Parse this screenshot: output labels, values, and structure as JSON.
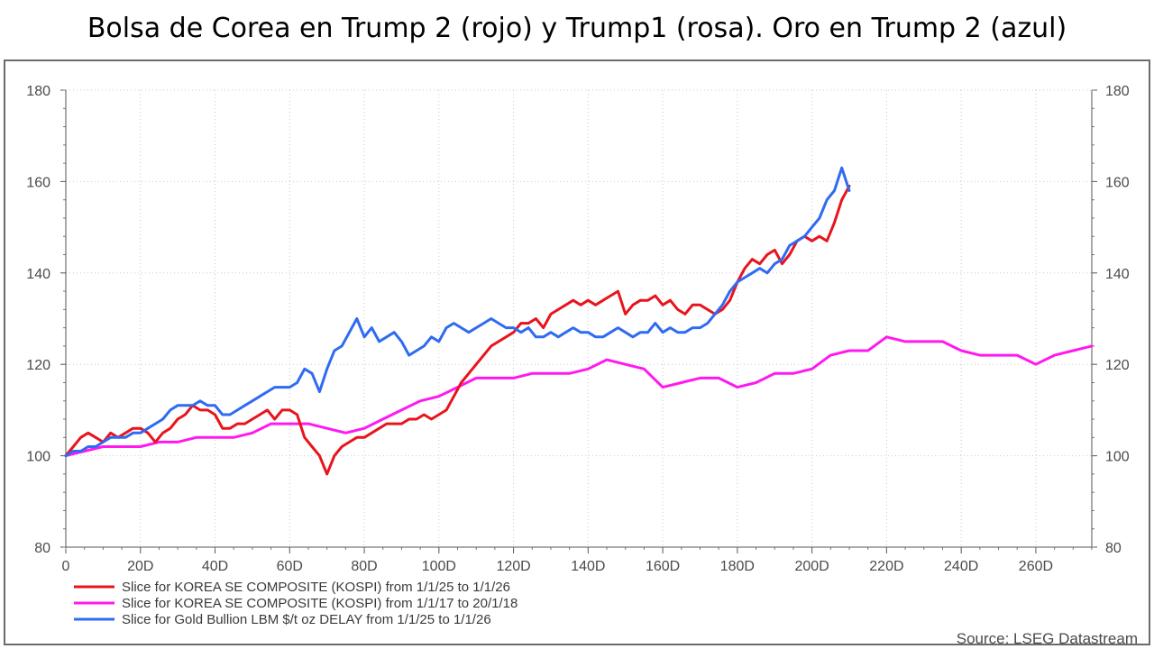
{
  "title": "Bolsa de Corea en Trump 2 (rojo) y Trump1 (rosa). Oro en Trump 2 (azul)",
  "source": "Source: LSEG Datastream",
  "chart_data": {
    "type": "line",
    "title": "Bolsa de Corea en Trump 2 (rojo) y Trump1 (rosa). Oro en Trump 2 (azul)",
    "xlabel": "",
    "ylabel": "",
    "xlim": [
      0,
      275
    ],
    "ylim": [
      80,
      180
    ],
    "grid": true,
    "legend": "bottom-left",
    "x_ticks": [
      {
        "value": 0,
        "label": "0"
      },
      {
        "value": 20,
        "label": "20D"
      },
      {
        "value": 40,
        "label": "40D"
      },
      {
        "value": 60,
        "label": "60D"
      },
      {
        "value": 80,
        "label": "80D"
      },
      {
        "value": 100,
        "label": "100D"
      },
      {
        "value": 120,
        "label": "120D"
      },
      {
        "value": 140,
        "label": "140D"
      },
      {
        "value": 160,
        "label": "160D"
      },
      {
        "value": 180,
        "label": "180D"
      },
      {
        "value": 200,
        "label": "200D"
      },
      {
        "value": 220,
        "label": "220D"
      },
      {
        "value": 240,
        "label": "240D"
      },
      {
        "value": 260,
        "label": "260D"
      }
    ],
    "y_ticks": [
      80,
      100,
      120,
      140,
      160,
      180
    ],
    "series": [
      {
        "name": "Slice for KOREA SE COMPOSITE (KOSPI) from 1/1/25 to 1/1/26",
        "color": "#e8141c",
        "x": [
          0,
          2,
          4,
          6,
          8,
          10,
          12,
          14,
          16,
          18,
          20,
          22,
          24,
          26,
          28,
          30,
          32,
          34,
          36,
          38,
          40,
          42,
          44,
          46,
          48,
          50,
          52,
          54,
          56,
          58,
          60,
          62,
          64,
          66,
          68,
          70,
          72,
          74,
          76,
          78,
          80,
          82,
          84,
          86,
          88,
          90,
          92,
          94,
          96,
          98,
          100,
          102,
          104,
          106,
          108,
          110,
          112,
          114,
          116,
          118,
          120,
          122,
          124,
          126,
          128,
          130,
          132,
          134,
          136,
          138,
          140,
          142,
          144,
          146,
          148,
          150,
          152,
          154,
          156,
          158,
          160,
          162,
          164,
          166,
          168,
          170,
          172,
          174,
          176,
          178,
          180,
          182,
          184,
          186,
          188,
          190,
          192,
          194,
          196,
          198,
          200,
          202,
          204,
          206,
          208,
          210
        ],
        "y": [
          100,
          102,
          104,
          105,
          104,
          103,
          105,
          104,
          105,
          106,
          106,
          105,
          103,
          105,
          106,
          108,
          109,
          111,
          110,
          110,
          109,
          106,
          106,
          107,
          107,
          108,
          109,
          110,
          108,
          110,
          110,
          109,
          104,
          102,
          100,
          96,
          100,
          102,
          103,
          104,
          104,
          105,
          106,
          107,
          107,
          107,
          108,
          108,
          109,
          108,
          109,
          110,
          113,
          116,
          118,
          120,
          122,
          124,
          125,
          126,
          127,
          129,
          129,
          130,
          128,
          131,
          132,
          133,
          134,
          133,
          134,
          133,
          134,
          135,
          136,
          131,
          133,
          134,
          134,
          135,
          133,
          134,
          132,
          131,
          133,
          133,
          132,
          131,
          132,
          134,
          138,
          141,
          143,
          142,
          144,
          145,
          142,
          144,
          147,
          148,
          147,
          148,
          147,
          151,
          156,
          159
        ],
        "values": [
          100,
          102,
          104,
          105,
          104,
          103,
          105,
          104,
          105,
          106,
          106,
          105,
          103,
          105,
          106,
          108,
          109,
          111,
          110,
          110,
          109,
          106,
          106,
          107,
          107,
          108,
          109,
          110,
          108,
          110,
          110,
          109,
          104,
          102,
          100,
          96,
          100,
          102,
          103,
          104,
          104,
          105,
          106,
          107,
          107,
          107,
          108,
          108,
          109,
          108,
          109,
          110,
          113,
          116,
          118,
          120,
          122,
          124,
          125,
          126,
          127,
          129,
          129,
          130,
          128,
          131,
          132,
          133,
          134,
          133,
          134,
          133,
          134,
          135,
          136,
          131,
          133,
          134,
          134,
          135,
          133,
          134,
          132,
          131,
          133,
          133,
          132,
          131,
          132,
          134,
          138,
          141,
          143,
          142,
          144,
          145,
          142,
          144,
          147,
          148,
          147,
          148,
          147,
          151,
          156,
          159
        ]
      },
      {
        "name": "Slice for KOREA SE COMPOSITE (KOSPI) from 1/1/17 to 20/1/18",
        "color": "#ff19f0",
        "x": [
          0,
          5,
          10,
          15,
          20,
          25,
          30,
          35,
          40,
          45,
          50,
          55,
          60,
          65,
          70,
          75,
          80,
          85,
          90,
          95,
          100,
          105,
          110,
          115,
          120,
          125,
          130,
          135,
          140,
          145,
          150,
          155,
          160,
          165,
          170,
          175,
          180,
          185,
          190,
          195,
          200,
          205,
          210,
          215,
          220,
          225,
          230,
          235,
          240,
          245,
          250,
          255,
          260,
          265,
          270,
          275
        ],
        "y": [
          100,
          101,
          102,
          102,
          102,
          103,
          103,
          104,
          104,
          104,
          105,
          107,
          107,
          107,
          106,
          105,
          106,
          108,
          110,
          112,
          113,
          115,
          117,
          117,
          117,
          118,
          118,
          118,
          119,
          121,
          120,
          119,
          115,
          116,
          117,
          117,
          115,
          116,
          118,
          118,
          119,
          122,
          123,
          123,
          126,
          125,
          125,
          125,
          123,
          122,
          122,
          122,
          120,
          122,
          123,
          124
        ],
        "values": [
          100,
          101,
          102,
          102,
          102,
          103,
          103,
          104,
          104,
          104,
          105,
          107,
          107,
          107,
          106,
          105,
          106,
          108,
          110,
          112,
          113,
          115,
          117,
          117,
          117,
          118,
          118,
          118,
          119,
          121,
          120,
          119,
          115,
          116,
          117,
          117,
          115,
          116,
          118,
          118,
          119,
          122,
          123,
          123,
          126,
          125,
          125,
          125,
          123,
          122,
          122,
          122,
          120,
          122,
          123,
          124
        ]
      },
      {
        "name": "Slice for Gold Bullion LBM $/t oz DELAY from 1/1/25 to 1/1/26",
        "color": "#2f6bf0",
        "x": [
          0,
          2,
          4,
          6,
          8,
          10,
          12,
          14,
          16,
          18,
          20,
          22,
          24,
          26,
          28,
          30,
          32,
          34,
          36,
          38,
          40,
          42,
          44,
          46,
          48,
          50,
          52,
          54,
          56,
          58,
          60,
          62,
          64,
          66,
          68,
          70,
          72,
          74,
          76,
          78,
          80,
          82,
          84,
          86,
          88,
          90,
          92,
          94,
          96,
          98,
          100,
          102,
          104,
          106,
          108,
          110,
          112,
          114,
          116,
          118,
          120,
          122,
          124,
          126,
          128,
          130,
          132,
          134,
          136,
          138,
          140,
          142,
          144,
          146,
          148,
          150,
          152,
          154,
          156,
          158,
          160,
          162,
          164,
          166,
          168,
          170,
          172,
          174,
          176,
          178,
          180,
          182,
          184,
          186,
          188,
          190,
          192,
          194,
          196,
          198,
          200,
          202,
          204,
          206,
          208,
          210
        ],
        "y": [
          100,
          101,
          101,
          102,
          102,
          103,
          104,
          104,
          104,
          105,
          105,
          106,
          107,
          108,
          110,
          111,
          111,
          111,
          112,
          111,
          111,
          109,
          109,
          110,
          111,
          112,
          113,
          114,
          115,
          115,
          115,
          116,
          119,
          118,
          114,
          119,
          123,
          124,
          127,
          130,
          126,
          128,
          125,
          126,
          127,
          125,
          122,
          123,
          124,
          126,
          125,
          128,
          129,
          128,
          127,
          128,
          129,
          130,
          129,
          128,
          128,
          127,
          128,
          126,
          126,
          127,
          126,
          127,
          128,
          127,
          127,
          126,
          126,
          127,
          128,
          127,
          126,
          127,
          127,
          129,
          127,
          128,
          127,
          127,
          128,
          128,
          129,
          131,
          133,
          136,
          138,
          139,
          140,
          141,
          140,
          142,
          143,
          146,
          147,
          148,
          150,
          152,
          156,
          158,
          163,
          158
        ],
        "values": [
          100,
          101,
          101,
          102,
          102,
          103,
          104,
          104,
          104,
          105,
          105,
          106,
          107,
          108,
          110,
          111,
          111,
          111,
          112,
          111,
          111,
          109,
          109,
          110,
          111,
          112,
          113,
          114,
          115,
          115,
          115,
          116,
          119,
          118,
          114,
          119,
          123,
          124,
          127,
          130,
          126,
          128,
          125,
          126,
          127,
          125,
          122,
          123,
          124,
          126,
          125,
          128,
          129,
          128,
          127,
          128,
          129,
          130,
          129,
          128,
          128,
          127,
          128,
          126,
          126,
          127,
          126,
          127,
          128,
          127,
          127,
          126,
          126,
          127,
          128,
          127,
          126,
          127,
          127,
          129,
          127,
          128,
          127,
          127,
          128,
          128,
          129,
          131,
          133,
          136,
          138,
          139,
          140,
          141,
          140,
          142,
          143,
          146,
          147,
          148,
          150,
          152,
          156,
          158,
          163,
          158
        ]
      }
    ]
  }
}
